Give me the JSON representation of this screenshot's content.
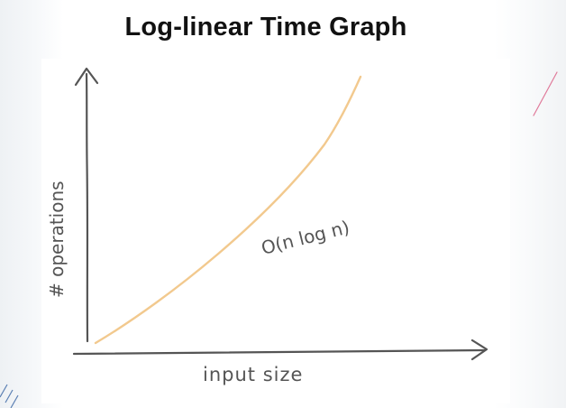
{
  "slide": {
    "title": "Log-linear Time Graph"
  },
  "diagram": {
    "y_axis_label": "# operations",
    "x_axis_label": "input size",
    "curve_label": "O(n log n)",
    "curve_color": "#f2c98e",
    "axis_color": "#555555",
    "accent_line_color": "#e07a9a",
    "accent_stripe_color": "#5b7fb3"
  }
}
